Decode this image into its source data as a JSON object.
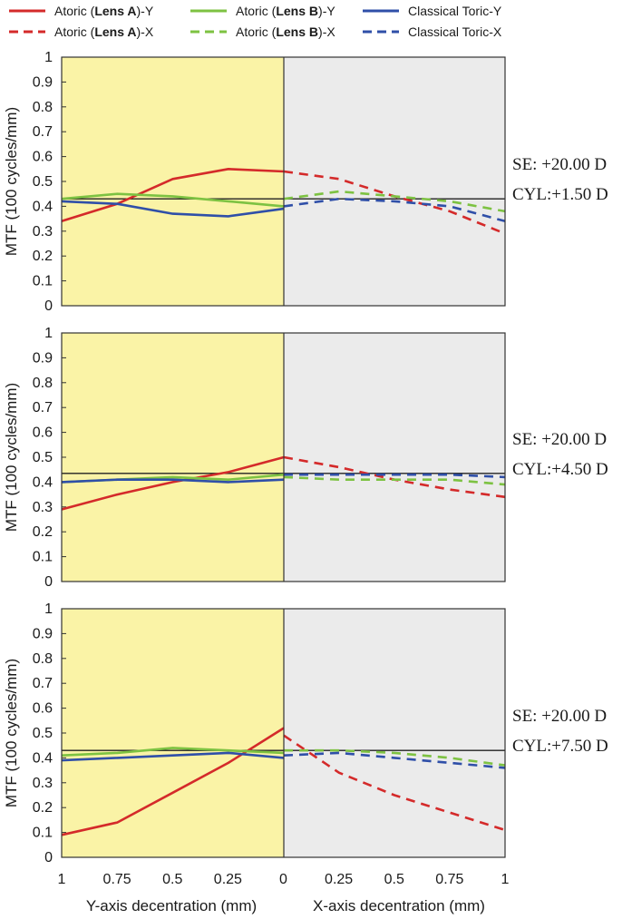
{
  "chart_data": {
    "type": "line",
    "legend": [
      {
        "name": "Atoric (Lens A)-Y",
        "color": "#d42a2a",
        "dash": "solid"
      },
      {
        "name": "Atoric (Lens B)-Y",
        "color": "#7dc242",
        "dash": "solid"
      },
      {
        "name": "Classical Toric-Y",
        "color": "#2f4fa8",
        "dash": "solid"
      },
      {
        "name": "Atoric (Lens A)-X",
        "color": "#d42a2a",
        "dash": "dashed"
      },
      {
        "name": "Atoric (Lens B)-X",
        "color": "#7dc242",
        "dash": "dashed"
      },
      {
        "name": "Classical Toric-X",
        "color": "#2f4fa8",
        "dash": "dashed"
      }
    ],
    "ylabel": "MTF (100 cycles/mm)",
    "ylim": [
      0,
      1
    ],
    "yticks": [
      "0",
      "0.1",
      "0.2",
      "0.3",
      "0.4",
      "0.5",
      "0.6",
      "0.7",
      "0.8",
      "0.9",
      "1"
    ],
    "xticks": [
      "1",
      "0.75",
      "0.5",
      "0.25",
      "0",
      "0.25",
      "0.5",
      "0.75",
      "1"
    ],
    "xlabel_left": "Y-axis decentration (mm)",
    "xlabel_right": "X-axis decentration (mm)",
    "colors": {
      "y_region": "#faf3a6",
      "x_region": "#ebebeb"
    },
    "panels": [
      {
        "se": "SE: +20.00 D",
        "cyl": "CYL:+1.50 D",
        "reference": 0.43,
        "y_series": {
          "x": [
            1,
            0.75,
            0.5,
            0.25,
            0
          ],
          "Atoric (Lens A)-Y": [
            0.34,
            0.41,
            0.51,
            0.55,
            0.54
          ],
          "Atoric (Lens B)-Y": [
            0.43,
            0.45,
            0.44,
            0.42,
            0.4
          ],
          "Classical Toric-Y": [
            0.42,
            0.41,
            0.37,
            0.36,
            0.39
          ]
        },
        "x_series": {
          "x": [
            0,
            0.25,
            0.5,
            0.75,
            1
          ],
          "Atoric (Lens A)-X": [
            0.54,
            0.51,
            0.44,
            0.38,
            0.29
          ],
          "Atoric (Lens B)-X": [
            0.43,
            0.46,
            0.44,
            0.42,
            0.38
          ],
          "Classical Toric-X": [
            0.4,
            0.43,
            0.42,
            0.4,
            0.34
          ]
        }
      },
      {
        "se": "SE: +20.00 D",
        "cyl": "CYL:+4.50 D",
        "reference": 0.435,
        "y_series": {
          "x": [
            1,
            0.75,
            0.5,
            0.25,
            0
          ],
          "Atoric (Lens A)-Y": [
            0.29,
            0.35,
            0.4,
            0.44,
            0.5
          ],
          "Atoric (Lens B)-Y": [
            0.4,
            0.41,
            0.42,
            0.41,
            0.43
          ],
          "Classical Toric-Y": [
            0.4,
            0.41,
            0.41,
            0.4,
            0.41
          ]
        },
        "x_series": {
          "x": [
            0,
            0.25,
            0.5,
            0.75,
            1
          ],
          "Atoric (Lens A)-X": [
            0.5,
            0.46,
            0.41,
            0.37,
            0.34
          ],
          "Atoric (Lens B)-X": [
            0.42,
            0.41,
            0.41,
            0.41,
            0.39
          ],
          "Classical Toric-X": [
            0.43,
            0.43,
            0.43,
            0.43,
            0.42
          ]
        }
      },
      {
        "se": "SE: +20.00 D",
        "cyl": "CYL:+7.50 D",
        "reference": 0.43,
        "y_series": {
          "x": [
            1,
            0.75,
            0.5,
            0.25,
            0
          ],
          "Atoric (Lens A)-Y": [
            0.09,
            0.14,
            0.26,
            0.38,
            0.52
          ],
          "Atoric (Lens B)-Y": [
            0.41,
            0.42,
            0.44,
            0.43,
            0.42
          ],
          "Classical Toric-Y": [
            0.39,
            0.4,
            0.41,
            0.42,
            0.4
          ]
        },
        "x_series": {
          "x": [
            0,
            0.25,
            0.5,
            0.75,
            1
          ],
          "Atoric (Lens A)-X": [
            0.49,
            0.34,
            0.25,
            0.18,
            0.11
          ],
          "Atoric (Lens B)-X": [
            0.43,
            0.43,
            0.42,
            0.4,
            0.37
          ],
          "Classical Toric-X": [
            0.41,
            0.42,
            0.4,
            0.38,
            0.36
          ]
        }
      }
    ]
  }
}
